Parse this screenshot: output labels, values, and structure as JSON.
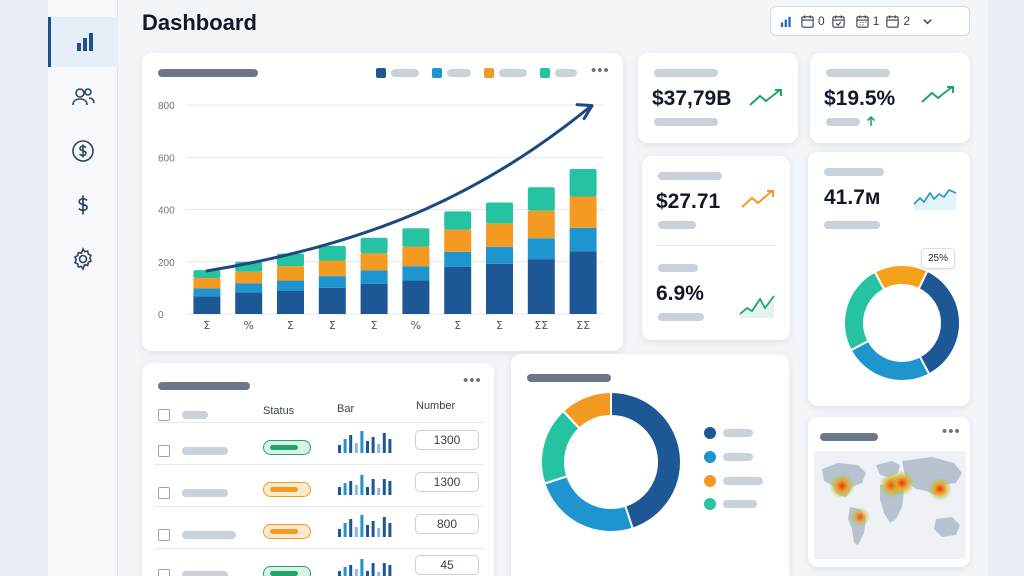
{
  "header": {
    "title": "Dashboard"
  },
  "toolbar": {
    "chart_icon": "bar-chart-icon",
    "filters": [
      {
        "icon": "calendar-icon",
        "value": "0"
      },
      {
        "icon": "calendar-check-icon",
        "value": ""
      },
      {
        "icon": "calendar-grid-icon",
        "value": "1"
      },
      {
        "icon": "calendar-icon",
        "value": "2"
      }
    ]
  },
  "sidebar": {
    "items": [
      {
        "icon": "bar-chart-icon",
        "active": true
      },
      {
        "icon": "users-icon",
        "active": false
      },
      {
        "icon": "dollar-circle-icon",
        "active": false
      },
      {
        "icon": "dollar-icon",
        "active": false
      },
      {
        "icon": "gear-icon",
        "active": false
      }
    ]
  },
  "colors": {
    "navy": "#1d5796",
    "blue": "#1f95cf",
    "orange": "#f29a21",
    "teal": "#25c3a2",
    "green": "#20a46b",
    "amber": "#f4a11b"
  },
  "kpis": [
    {
      "value": "$37,79B",
      "trend": "up"
    },
    {
      "value": "$19.5%",
      "trend": "up"
    },
    {
      "value": "$27.71",
      "trend": "up"
    },
    {
      "value": "6.9%",
      "trend": "up"
    },
    {
      "value": "41.7м",
      "trend": "up"
    }
  ],
  "chart_data": [
    {
      "type": "bar",
      "stacked": true,
      "categories": [
        "Σ",
        "%",
        "Σ",
        "Σ",
        "Σ",
        "%",
        "Σ",
        "Σ",
        "ΣΣ",
        "ΣΣ"
      ],
      "yticks": [
        "0",
        "200",
        "400",
        "600",
        "800"
      ],
      "ylim": [
        0,
        800
      ],
      "series": [
        {
          "values": [
            68,
            82,
            88,
            100,
            115,
            128,
            180,
            192,
            210,
            240
          ]
        },
        {
          "values": [
            30,
            35,
            40,
            45,
            52,
            55,
            58,
            65,
            80,
            90
          ]
        },
        {
          "values": [
            40,
            45,
            55,
            60,
            65,
            75,
            85,
            90,
            105,
            120
          ]
        },
        {
          "values": [
            30,
            38,
            48,
            56,
            60,
            70,
            70,
            80,
            90,
            105
          ]
        }
      ],
      "trend_line": true,
      "legend_position": "top-right",
      "grid": true
    },
    {
      "type": "pie",
      "subtype": "donut",
      "slices": [
        {
          "value": 45
        },
        {
          "value": 25
        },
        {
          "value": 18
        },
        {
          "value": 12
        }
      ]
    },
    {
      "type": "pie",
      "subtype": "donut",
      "annotation": "25%",
      "slices": [
        {
          "value": 35
        },
        {
          "value": 25
        },
        {
          "value": 25
        },
        {
          "value": 15
        }
      ]
    }
  ],
  "table": {
    "headers": {
      "status": "Status",
      "bar": "Bar",
      "number": "Number"
    },
    "rows": [
      {
        "status": "green",
        "number": "1300"
      },
      {
        "status": "orange",
        "number": "1300"
      },
      {
        "status": "orange",
        "number": "800"
      },
      {
        "status": "green",
        "number": "45"
      }
    ]
  }
}
